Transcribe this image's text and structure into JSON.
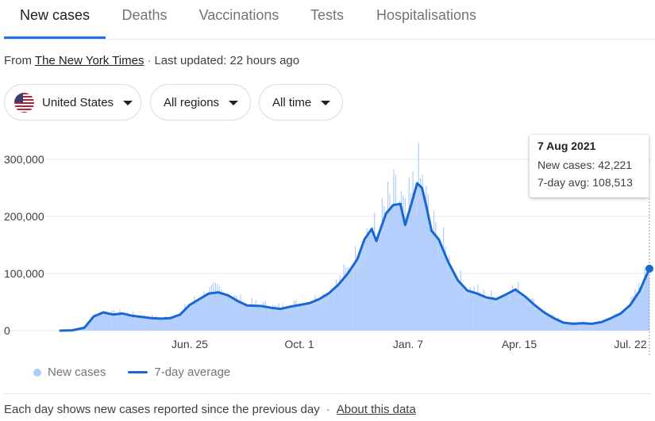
{
  "tabs": [
    {
      "label": "New cases",
      "active": true
    },
    {
      "label": "Deaths",
      "active": false
    },
    {
      "label": "Vaccinations",
      "active": false
    },
    {
      "label": "Tests",
      "active": false
    },
    {
      "label": "Hospitalisations",
      "active": false
    }
  ],
  "source": {
    "prefix": "From",
    "link": "The New York Times",
    "updated": "Last updated: 22 hours ago"
  },
  "filters": {
    "country": "United States",
    "region": "All regions",
    "time": "All time"
  },
  "tooltip": {
    "date": "7 Aug 2021",
    "new_cases": "New cases: 42,221",
    "avg": "7-day avg: 108,513"
  },
  "legend": {
    "cases": "New cases",
    "avg": "7-day average"
  },
  "footer": {
    "note": "Each day shows new cases reported since the previous day",
    "link": "About this data"
  },
  "colors": {
    "accent": "#1a73e8",
    "avg_line": "#1967d2",
    "bars": "#aecbfa"
  },
  "chart_data": {
    "type": "area",
    "y_tick_labels": [
      "300,000",
      "200,000",
      "100,000",
      "0"
    ],
    "y_ticks": [
      300000,
      200000,
      100000,
      0
    ],
    "x_tick_labels": [
      "Jun. 25",
      "Oct. 1",
      "Jan. 7",
      "Apr. 15",
      "Jul. 22"
    ],
    "ylim": [
      0,
      300000
    ],
    "grid": true,
    "legend_position": "bottom",
    "series": [
      {
        "name": "7-day average",
        "points": [
          [
            0,
            0
          ],
          [
            0.025,
            500
          ],
          [
            0.05,
            5000
          ],
          [
            0.07,
            25000
          ],
          [
            0.09,
            32000
          ],
          [
            0.11,
            28000
          ],
          [
            0.13,
            30000
          ],
          [
            0.15,
            26000
          ],
          [
            0.17,
            24000
          ],
          [
            0.19,
            22000
          ],
          [
            0.21,
            21000
          ],
          [
            0.23,
            22000
          ],
          [
            0.25,
            28000
          ],
          [
            0.27,
            45000
          ],
          [
            0.29,
            55000
          ],
          [
            0.31,
            65000
          ],
          [
            0.33,
            67000
          ],
          [
            0.35,
            62000
          ],
          [
            0.37,
            52000
          ],
          [
            0.39,
            44000
          ],
          [
            0.42,
            43000
          ],
          [
            0.44,
            40000
          ],
          [
            0.46,
            38000
          ],
          [
            0.48,
            42000
          ],
          [
            0.5,
            45000
          ],
          [
            0.52,
            48000
          ],
          [
            0.54,
            55000
          ],
          [
            0.56,
            65000
          ],
          [
            0.58,
            80000
          ],
          [
            0.6,
            100000
          ],
          [
            0.62,
            125000
          ],
          [
            0.635,
            160000
          ],
          [
            0.65,
            178000
          ],
          [
            0.66,
            157000
          ],
          [
            0.665,
            170000
          ],
          [
            0.68,
            205000
          ],
          [
            0.695,
            220000
          ],
          [
            0.71,
            222000
          ],
          [
            0.72,
            185000
          ],
          [
            0.735,
            228000
          ],
          [
            0.745,
            258000
          ],
          [
            0.755,
            250000
          ],
          [
            0.765,
            215000
          ],
          [
            0.775,
            175000
          ],
          [
            0.79,
            160000
          ],
          [
            0.81,
            120000
          ],
          [
            0.83,
            88000
          ],
          [
            0.85,
            70000
          ],
          [
            0.87,
            65000
          ],
          [
            0.89,
            58000
          ],
          [
            0.91,
            55000
          ],
          [
            0.93,
            63000
          ],
          [
            0.95,
            72000
          ],
          [
            0.97,
            60000
          ],
          [
            0.99,
            45000
          ],
          [
            1.01,
            32000
          ],
          [
            1.03,
            22000
          ],
          [
            1.05,
            14000
          ],
          [
            1.07,
            12000
          ],
          [
            1.09,
            13000
          ],
          [
            1.11,
            12000
          ],
          [
            1.13,
            15000
          ],
          [
            1.15,
            22000
          ],
          [
            1.17,
            30000
          ],
          [
            1.19,
            45000
          ],
          [
            1.21,
            70000
          ],
          [
            1.22,
            90000
          ],
          [
            1.23,
            108513
          ]
        ]
      }
    ]
  }
}
